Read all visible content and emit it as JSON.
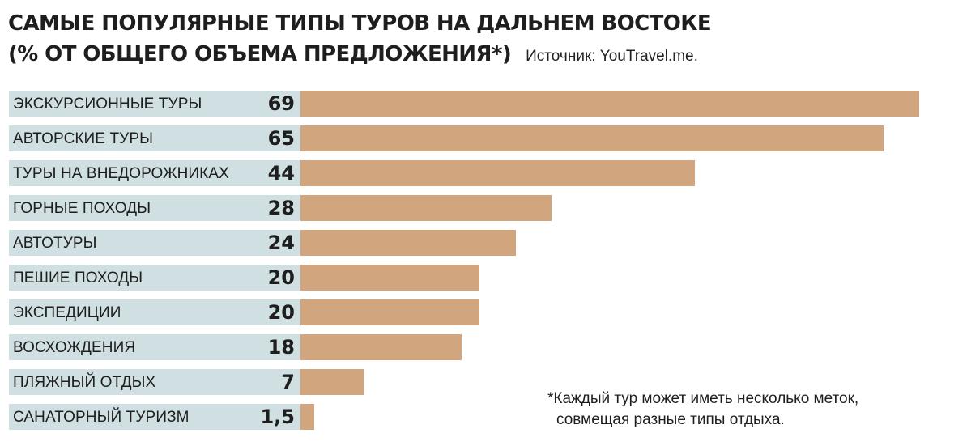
{
  "title": {
    "line1": "САМЫЕ ПОПУЛЯРНЫЕ ТИПЫ ТУРОВ НА ДАЛЬНЕМ ВОСТОКЕ",
    "line2": "(% ОТ ОБЩЕГО ОБЪЕМА ПРЕДЛОЖЕНИЯ*)"
  },
  "source": "Источник: YouTravel.me.",
  "footnote": {
    "line1": "*Каждый тур может иметь несколько меток,",
    "line2": "совмещая разные типы отдыха."
  },
  "colors": {
    "bar": "#d1a57d",
    "label_bg": "#d0dfe1"
  },
  "chart_data": {
    "type": "bar",
    "orientation": "horizontal",
    "categories": [
      "ЭКСКУРСИОННЫЕ ТУРЫ",
      "АВТОРСКИЕ ТУРЫ",
      "ТУРЫ НА ВНЕДОРОЖНИКАХ",
      "ГОРНЫЕ ПОХОДЫ",
      "АВТОТУРЫ",
      "ПЕШИЕ ПОХОДЫ",
      "ЭКСПЕДИЦИИ",
      "ВОСХОЖДЕНИЯ",
      "ПЛЯЖНЫЙ ОТДЫХ",
      "САНАТОРНЫЙ ТУРИЗМ"
    ],
    "values": [
      69,
      65,
      44,
      28,
      24,
      20,
      20,
      18,
      7,
      1.5
    ],
    "value_labels": [
      "69",
      "65",
      "44",
      "28",
      "24",
      "20",
      "20",
      "18",
      "7",
      "1,5"
    ],
    "xlim": [
      0,
      69
    ],
    "grid": false,
    "legend": "none"
  }
}
